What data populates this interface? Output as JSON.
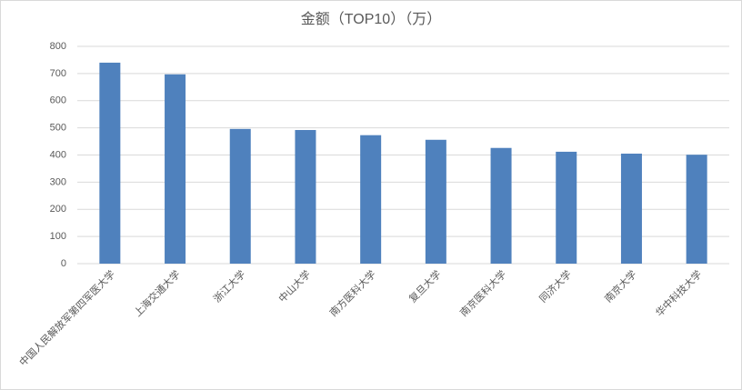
{
  "chart_data": {
    "type": "bar",
    "title": "金额（TOP10）（万）",
    "categories": [
      "中国人民解放军第四军医大学",
      "上海交通大学",
      "浙江大学",
      "中山大学",
      "南方医科大学",
      "复旦大学",
      "南京医科大学",
      "同济大学",
      "南京大学",
      "华中科技大学"
    ],
    "values": [
      740,
      697,
      496,
      492,
      473,
      456,
      426,
      412,
      405,
      401
    ],
    "color": "#4f81bd",
    "ylim": [
      0,
      800
    ],
    "yticks": [
      0,
      100,
      200,
      300,
      400,
      500,
      600,
      700,
      800
    ],
    "grid": true
  }
}
